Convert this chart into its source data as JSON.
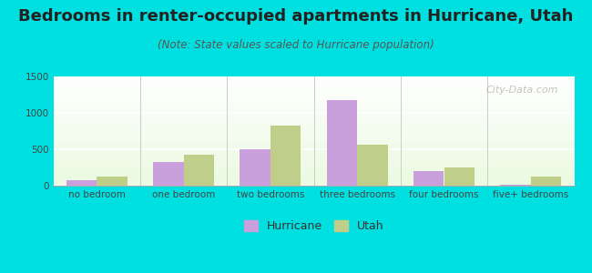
{
  "title": "Bedrooms in renter-occupied apartments in Hurricane, Utah",
  "subtitle": "(Note: State values scaled to Hurricane population)",
  "categories": [
    "no bedroom",
    "one bedroom",
    "two bedrooms",
    "three bedrooms",
    "four bedrooms",
    "five+ bedrooms"
  ],
  "hurricane_values": [
    75,
    330,
    495,
    1175,
    205,
    15
  ],
  "utah_values": [
    130,
    430,
    820,
    560,
    255,
    130
  ],
  "hurricane_color": "#c9a0dc",
  "utah_color": "#bfcf8a",
  "background_outer": "#00e0e0",
  "ylim": [
    0,
    1500
  ],
  "yticks": [
    0,
    500,
    1000,
    1500
  ],
  "bar_width": 0.35,
  "title_fontsize": 13,
  "subtitle_fontsize": 8.5,
  "tick_fontsize": 7.5,
  "legend_fontsize": 9,
  "watermark_text": "City-Data.com"
}
